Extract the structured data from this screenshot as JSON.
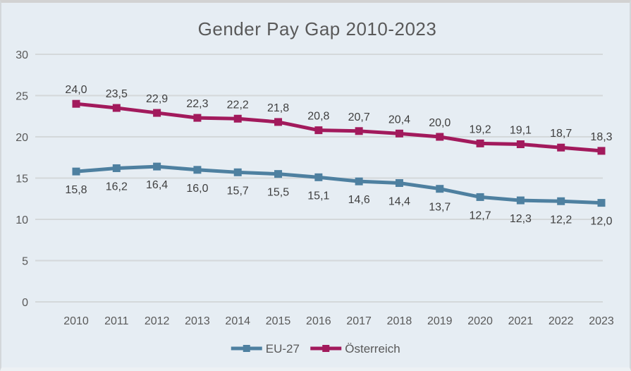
{
  "chart_data": {
    "type": "line",
    "title": "Gender Pay Gap 2010-2023",
    "categories": [
      "2010",
      "2011",
      "2012",
      "2013",
      "2014",
      "2015",
      "2016",
      "2017",
      "2018",
      "2019",
      "2020",
      "2021",
      "2022",
      "2023"
    ],
    "series": [
      {
        "name": "EU-27",
        "color": "#4e80a0",
        "values": [
          15.8,
          16.2,
          16.4,
          16.0,
          15.7,
          15.5,
          15.1,
          14.6,
          14.4,
          13.7,
          12.7,
          12.3,
          12.2,
          12.0
        ],
        "labels": [
          "15,8",
          "16,2",
          "16,4",
          "16,0",
          "15,7",
          "15,5",
          "15,1",
          "14,6",
          "14,4",
          "13,7",
          "12,7",
          "12,3",
          "12,2",
          "12,0"
        ],
        "label_position": "below"
      },
      {
        "name": "Österreich",
        "color": "#a21a5c",
        "values": [
          24.0,
          23.5,
          22.9,
          22.3,
          22.2,
          21.8,
          20.8,
          20.7,
          20.4,
          20.0,
          19.2,
          19.1,
          18.7,
          18.3
        ],
        "labels": [
          "24,0",
          "23,5",
          "22,9",
          "22,3",
          "22,2",
          "21,8",
          "20,8",
          "20,7",
          "20,4",
          "20,0",
          "19,2",
          "19,1",
          "18,7",
          "18,3"
        ],
        "label_position": "above"
      }
    ],
    "xlabel": "",
    "ylabel": "",
    "ylim": [
      0,
      30
    ],
    "ytick_step": 5,
    "ytick_labels": [
      "0",
      "5",
      "10",
      "15",
      "20",
      "25",
      "30"
    ],
    "grid": true,
    "marker": "square",
    "legend_position": "bottom",
    "decimal_separator": ",",
    "styles": {
      "background": "#e6edf3",
      "gridline_color": "#d4d8da",
      "title_color": "#595959",
      "axis_label_color": "#595959",
      "data_label_color": "#3f3f3f",
      "legend_label_color": "#595959"
    }
  }
}
